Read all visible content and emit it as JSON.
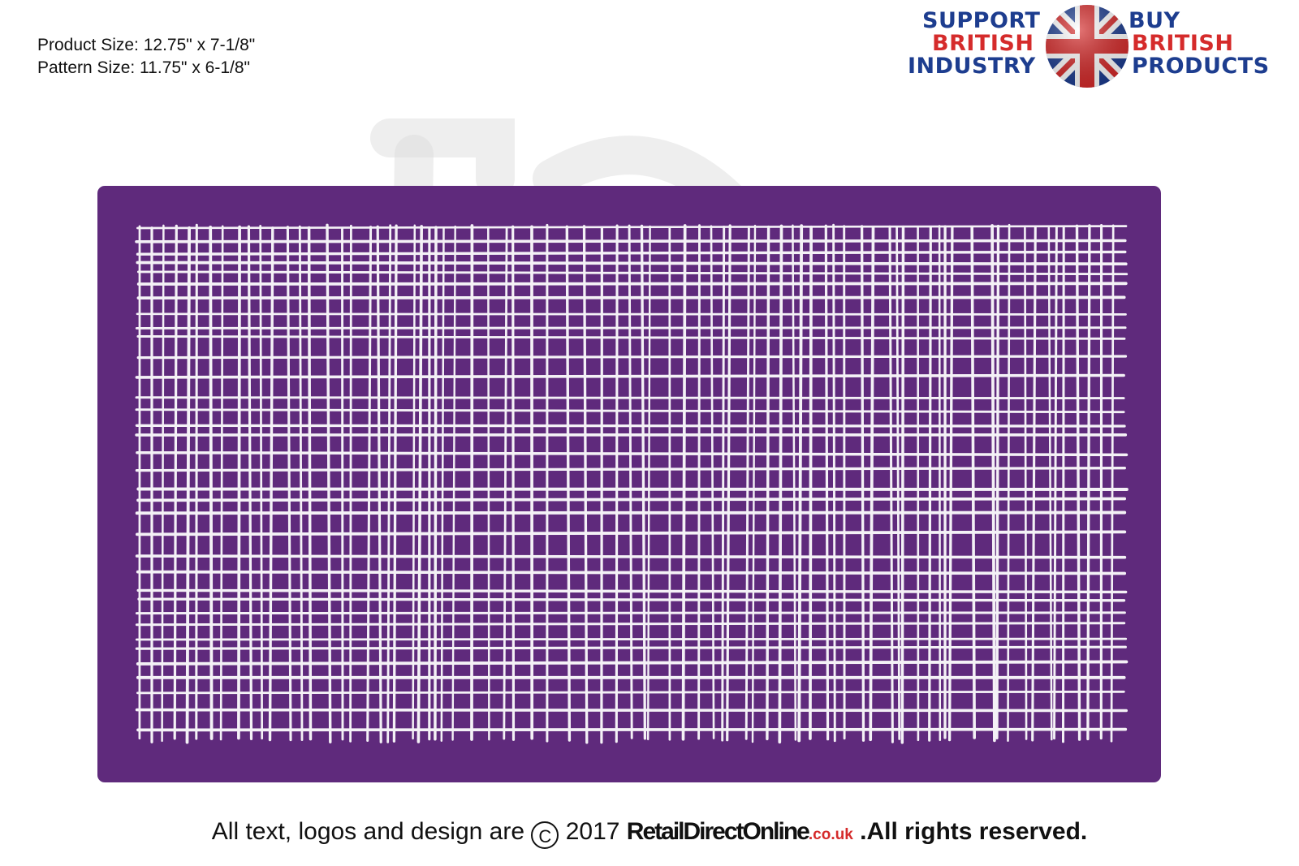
{
  "specs": {
    "product_size": "Product Size: 12.75\" x 7-1/8\"",
    "pattern_size": "Pattern Size: 11.75\" x 6-1/8\""
  },
  "badge": {
    "support": "SUPPORT",
    "british_left": "BRITISH",
    "industry": "INDUSTRY",
    "buy": "BUY",
    "british_right": "BRITISH",
    "products": "PRODUCTS",
    "icon": "union-jack-icon"
  },
  "footer": {
    "text_before": "All text, logos and design are",
    "copyright_symbol": "C",
    "year": "2017",
    "brand": "RetailDirectOnline",
    "tld": ".co.uk",
    "rights": ".All rights reserved."
  },
  "colors": {
    "stencil": "#5f2a7c",
    "mesh": "#f4f1f6",
    "navy": "#1d3d8f",
    "red": "#d52b2b"
  }
}
